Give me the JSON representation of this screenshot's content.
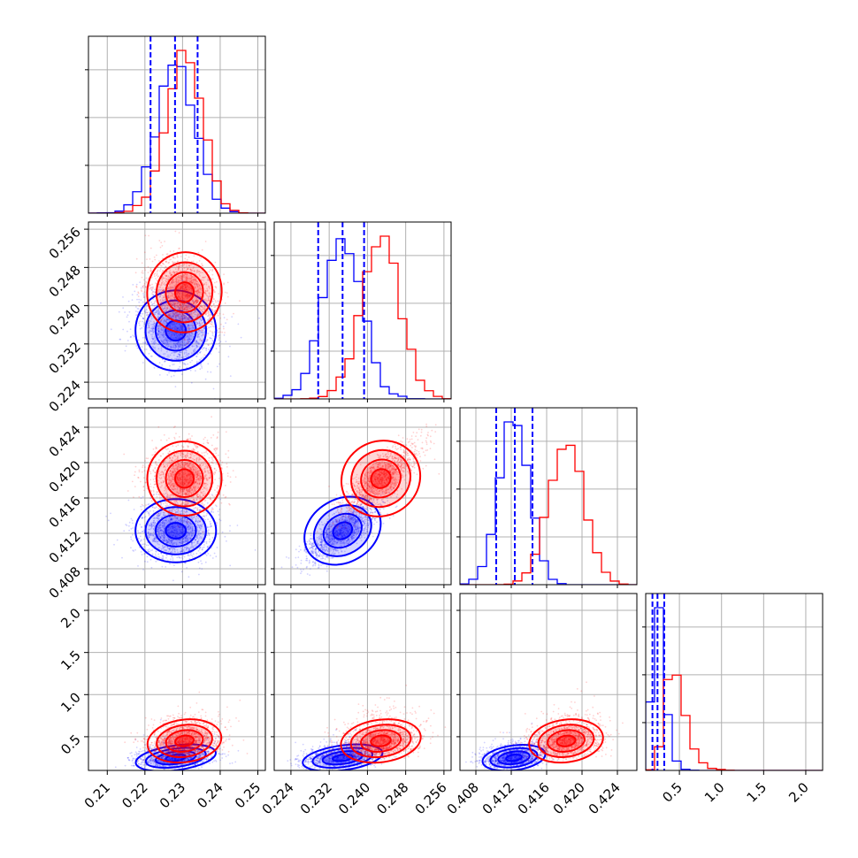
{
  "colors": {
    "series_a": "#0000ff",
    "series_b": "#ff0000",
    "grid": "#b0b0b0",
    "frame": "#000000"
  },
  "chart_data": {
    "type": "corner",
    "grid": true,
    "n_params": 4,
    "series": [
      {
        "color": "#0000ff",
        "marginals": [
          {
            "mean": 0.2282,
            "sd": 0.0051
          },
          {
            "mean": 0.2348,
            "sd": 0.004
          },
          {
            "mean": 0.4123,
            "sd": 0.0017
          },
          {
            "mean": 0.25,
            "sd": 0.07
          }
        ],
        "quantiles": [
          [
            0.2215,
            0.228,
            0.234
          ],
          [
            0.2297,
            0.2348,
            0.2393
          ],
          [
            0.4103,
            0.4124,
            0.4144
          ],
          [
            0.18,
            0.24,
            0.32
          ]
        ]
      },
      {
        "color": "#ff0000",
        "marginals": [
          {
            "mean": 0.2305,
            "sd": 0.0047
          },
          {
            "mean": 0.2428,
            "sd": 0.004
          },
          {
            "mean": 0.4182,
            "sd": 0.002
          },
          {
            "mean": 0.45,
            "sd": 0.12
          }
        ]
      }
    ],
    "correlations": {
      "1-0": [
        -0.2,
        -0.3
      ],
      "2-0": [
        0.0,
        0.0
      ],
      "2-1": [
        0.8,
        0.8
      ],
      "3-0": [
        0.2,
        0.2
      ],
      "3-1": [
        0.2,
        0.2
      ],
      "3-2": [
        0.2,
        0.2
      ]
    },
    "ranges": [
      [
        0.205,
        0.252
      ],
      [
        0.2205,
        0.2575
      ],
      [
        0.4062,
        0.4262
      ],
      [
        0.1,
        2.2
      ]
    ],
    "ticks": [
      {
        "values": [
          0.21,
          0.22,
          0.23,
          0.24,
          0.25
        ],
        "labels": [
          "0.21",
          "0.22",
          "0.23",
          "0.24",
          "0.25"
        ]
      },
      {
        "values": [
          0.224,
          0.232,
          0.24,
          0.248,
          0.256
        ],
        "labels": [
          "0.224",
          "0.232",
          "0.240",
          "0.248",
          "0.256"
        ]
      },
      {
        "values": [
          0.408,
          0.412,
          0.416,
          0.42,
          0.424
        ],
        "labels": [
          "0.408",
          "0.412",
          "0.416",
          "0.420",
          "0.424"
        ]
      },
      {
        "values": [
          0.5,
          1.0,
          1.5,
          2.0
        ],
        "labels": [
          "0.5",
          "1.0",
          "1.5",
          "2.0"
        ]
      }
    ]
  }
}
